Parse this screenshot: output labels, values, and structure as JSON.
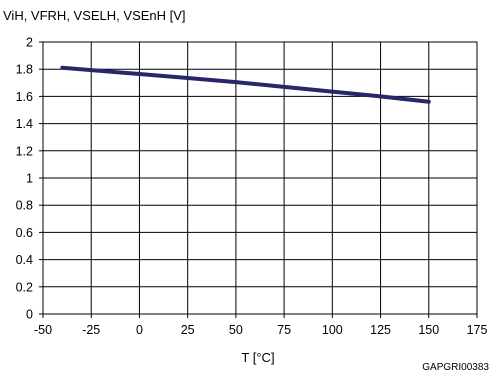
{
  "chart_data": {
    "type": "line",
    "ylabel": "ViH, VFRH, VSELH, VSEnH [V]",
    "xlabel": "T [°C]",
    "xlim": [
      -50,
      175
    ],
    "ylim": [
      0,
      2
    ],
    "x_ticks": [
      "-50",
      "-25",
      "0",
      "25",
      "50",
      "75",
      "100",
      "125",
      "150",
      "175"
    ],
    "y_ticks": [
      "0",
      "0.2",
      "0.4",
      "0.6",
      "0.8",
      "1",
      "1.2",
      "1.4",
      "1.6",
      "1.8",
      "2"
    ],
    "grid": true,
    "series": [
      {
        "color": "#27276a",
        "x": [
          -40,
          0,
          25,
          50,
          75,
          100,
          125,
          150
        ],
        "y": [
          1.81,
          1.765,
          1.735,
          1.705,
          1.67,
          1.635,
          1.6,
          1.56
        ]
      }
    ],
    "figure_code": "GAPGRI00383"
  }
}
